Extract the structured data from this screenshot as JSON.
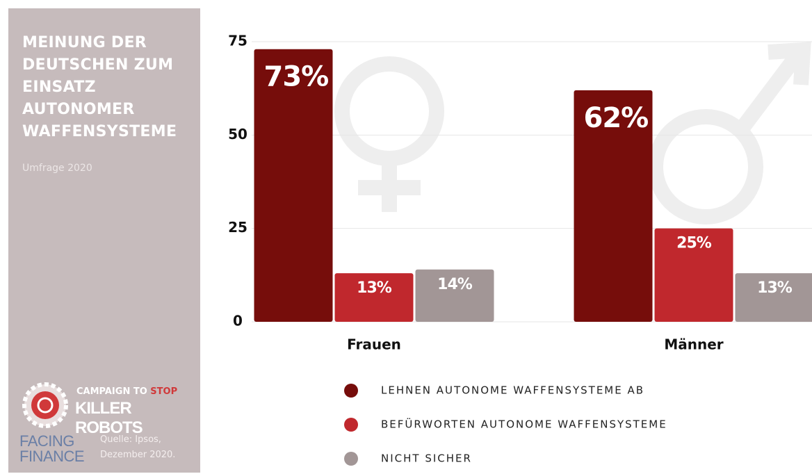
{
  "sidebar": {
    "title": "MEINUNG DER DEUTSCHEN ZUM EINSATZ AUTONOMER WAFFENSYSTEME",
    "subtitle": "Umfrage 2020",
    "logo_top": "CAMPAIGN TO",
    "logo_top_accent": "STOP",
    "logo_main": "KILLER ROBOTS",
    "logo2": "FACING FINANCE",
    "source": "Quelle: Ipsos, Dezember 2020."
  },
  "chart_data": {
    "type": "bar",
    "categories": [
      "Frauen",
      "Männer"
    ],
    "series": [
      {
        "name": "LEHNEN AUTONOME WAFFENSYSTEME AB",
        "color": "#760d0b",
        "values": [
          73,
          62
        ],
        "value_labels": [
          "73%",
          "62%"
        ]
      },
      {
        "name": "BEFÜRWORTEN AUTONOME WAFFENSYSTEME",
        "color": "#c0282d",
        "values": [
          13,
          25
        ],
        "value_labels": [
          "13%",
          "25%"
        ]
      },
      {
        "name": "NICHT SICHER",
        "color": "#a29696",
        "values": [
          14,
          13
        ],
        "value_labels": [
          "14%",
          "13%"
        ]
      }
    ],
    "ylim": [
      0,
      75
    ],
    "yticks": [
      0,
      25,
      50,
      75
    ],
    "grid": true
  }
}
